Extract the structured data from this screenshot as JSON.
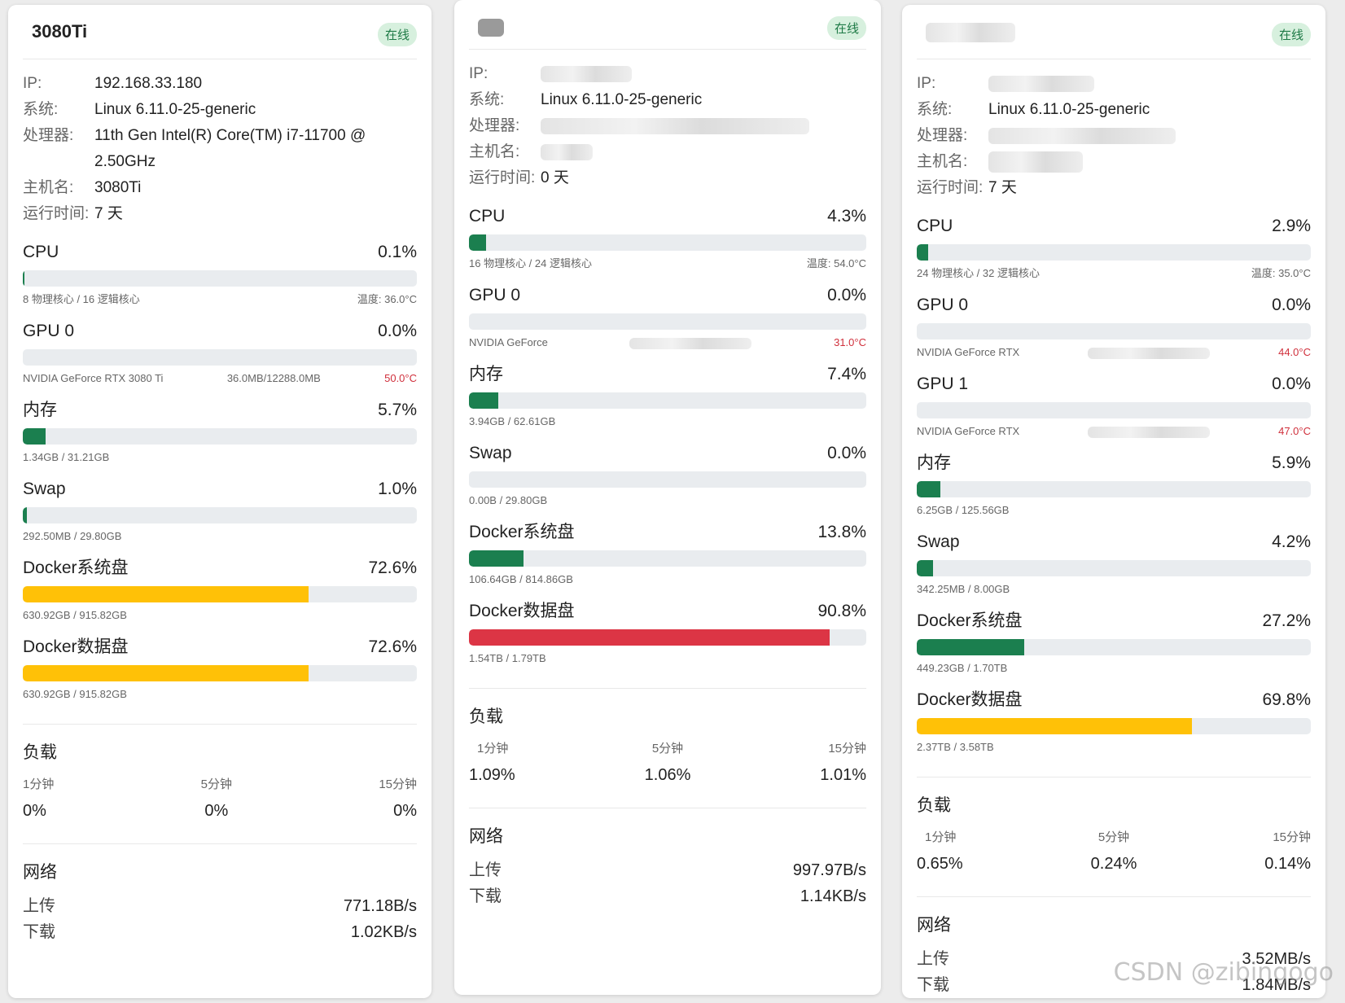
{
  "status_colors": {
    "green": "#1b7f4f",
    "yellow": "#ffc107",
    "red": "#dc3545",
    "track": "#e9ecef"
  },
  "labels": {
    "ip": "IP:",
    "system": "系统:",
    "cpu_model": "处理器:",
    "hostname": "主机名:",
    "uptime": "运行时间:",
    "load": "负载",
    "load_1": "1分钟",
    "load_5": "5分钟",
    "load_15": "15分钟",
    "network": "网络",
    "upload": "上传",
    "download": "下载"
  },
  "servers": [
    {
      "name": "3080Ti",
      "status": "在线",
      "ip": "192.168.33.180",
      "os": "Linux 6.11.0-25-generic",
      "cpu_model": "11th Gen Intel(R) Core(TM) i7-11700 @ 2.50GHz",
      "hostname": "3080Ti",
      "uptime": "7 天",
      "metrics": [
        {
          "name": "CPU",
          "value": "0.1%",
          "percent": 0.1,
          "color": "green",
          "sub_left": "8 物理核心 / 16 逻辑核心",
          "sub_right": "温度: 36.0°C"
        },
        {
          "name": "GPU 0",
          "value": "0.0%",
          "percent": 0.0,
          "color": "green",
          "sub_left": "NVIDIA GeForce RTX 3080 Ti",
          "sub_mid": "36.0MB/12288.0MB",
          "sub_right": "50.0°C",
          "right_red": true
        },
        {
          "name": "内存",
          "value": "5.7%",
          "percent": 5.7,
          "color": "green",
          "sub_left": "1.34GB / 31.21GB"
        },
        {
          "name": "Swap",
          "value": "1.0%",
          "percent": 1.0,
          "color": "green",
          "sub_left": "292.50MB / 29.80GB"
        },
        {
          "name": "Docker系统盘",
          "value": "72.6%",
          "percent": 72.6,
          "color": "yellow",
          "sub_left": "630.92GB / 915.82GB"
        },
        {
          "name": "Docker数据盘",
          "value": "72.6%",
          "percent": 72.6,
          "color": "yellow",
          "sub_left": "630.92GB / 915.82GB"
        }
      ],
      "load": [
        "0%",
        "0%",
        "0%"
      ],
      "upload": "771.18B/s",
      "download": "1.02KB/s"
    },
    {
      "name": "",
      "status": "在线",
      "ip": "",
      "os": "Linux 6.11.0-25-generic",
      "cpu_model": "",
      "hostname": "",
      "uptime": "0 天",
      "metrics": [
        {
          "name": "CPU",
          "value": "4.3%",
          "percent": 4.3,
          "color": "green",
          "sub_left": "16 物理核心 / 24 逻辑核心",
          "sub_right": "温度: 54.0°C"
        },
        {
          "name": "GPU 0",
          "value": "0.0%",
          "percent": 0.0,
          "color": "green",
          "sub_left": "NVIDIA GeForce",
          "sub_mid": "",
          "sub_right": "31.0°C",
          "right_red": true
        },
        {
          "name": "内存",
          "value": "7.4%",
          "percent": 7.4,
          "color": "green",
          "sub_left": "3.94GB / 62.61GB"
        },
        {
          "name": "Swap",
          "value": "0.0%",
          "percent": 0.0,
          "color": "green",
          "sub_left": "0.00B / 29.80GB"
        },
        {
          "name": "Docker系统盘",
          "value": "13.8%",
          "percent": 13.8,
          "color": "green",
          "sub_left": "106.64GB / 814.86GB"
        },
        {
          "name": "Docker数据盘",
          "value": "90.8%",
          "percent": 90.8,
          "color": "red",
          "sub_left": "1.54TB / 1.79TB"
        }
      ],
      "load": [
        "1.09%",
        "1.06%",
        "1.01%"
      ],
      "upload": "997.97B/s",
      "download": "1.14KB/s"
    },
    {
      "name": "",
      "status": "在线",
      "ip": "",
      "os": "Linux 6.11.0-25-generic",
      "cpu_model": "",
      "hostname": "",
      "uptime": "7 天",
      "metrics": [
        {
          "name": "CPU",
          "value": "2.9%",
          "percent": 2.9,
          "color": "green",
          "sub_left": "24 物理核心 / 32 逻辑核心",
          "sub_right": "温度: 35.0°C"
        },
        {
          "name": "GPU 0",
          "value": "0.0%",
          "percent": 0.0,
          "color": "green",
          "sub_left": "NVIDIA GeForce RTX",
          "sub_mid": "",
          "sub_right": "44.0°C",
          "right_red": true
        },
        {
          "name": "GPU 1",
          "value": "0.0%",
          "percent": 0.0,
          "color": "green",
          "sub_left": "NVIDIA GeForce RTX",
          "sub_mid": "",
          "sub_right": "47.0°C",
          "right_red": true
        },
        {
          "name": "内存",
          "value": "5.9%",
          "percent": 5.9,
          "color": "green",
          "sub_left": "6.25GB / 125.56GB"
        },
        {
          "name": "Swap",
          "value": "4.2%",
          "percent": 4.2,
          "color": "green",
          "sub_left": "342.25MB / 8.00GB"
        },
        {
          "name": "Docker系统盘",
          "value": "27.2%",
          "percent": 27.2,
          "color": "green",
          "sub_left": "449.23GB / 1.70TB"
        },
        {
          "name": "Docker数据盘",
          "value": "69.8%",
          "percent": 69.8,
          "color": "yellow",
          "sub_left": "2.37TB / 3.58TB"
        }
      ],
      "load": [
        "0.65%",
        "0.24%",
        "0.14%"
      ],
      "upload": "3.52MB/s",
      "download": "1.84MB/s"
    }
  ],
  "watermark": "CSDN @zibingogo"
}
